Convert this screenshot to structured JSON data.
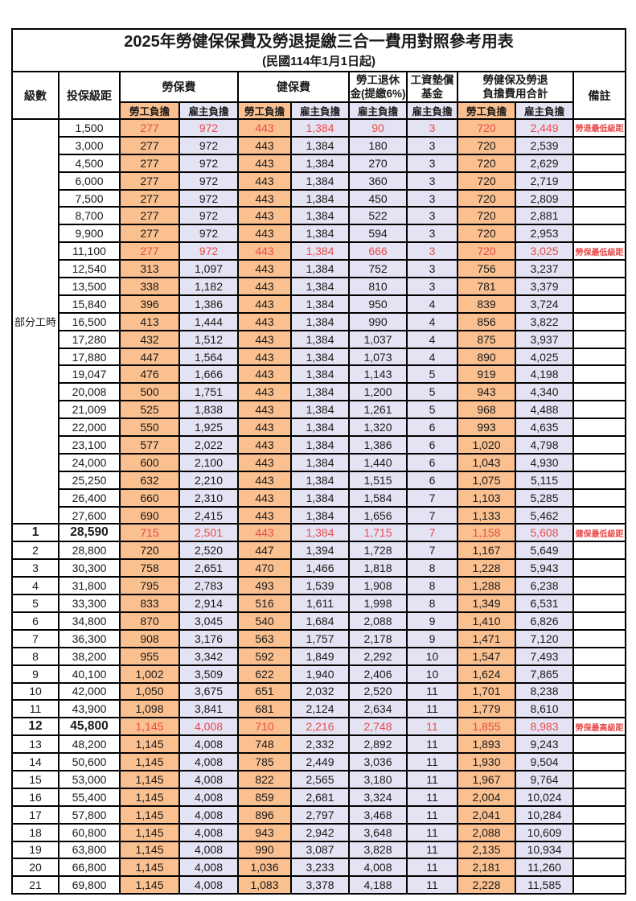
{
  "title": "2025年勞健保保費及勞退提繳三合一費用對照參考用表",
  "subtitle": "(民國114年1月1日起)",
  "colors": {
    "employee_fill": "#FAC090",
    "employer_fill": "#E4E3F3",
    "highlight_red": "#E94B4B",
    "border": "#000000"
  },
  "columns": {
    "level": "級數",
    "bracket": "投保級距",
    "labor_insurance": "勞保費",
    "health_insurance": "健保費",
    "pension_line1": "勞工退休",
    "pension_line2": "金(提繳6%)",
    "wage_fund_line1": "工資墊償",
    "wage_fund_line2": "基金",
    "total_line1": "勞健保及勞退",
    "total_line2": "負擔費用合計",
    "remark": "備註",
    "employee": "勞工負擔",
    "employer": "雇主負擔"
  },
  "part_time_label": "部分工時",
  "rows": [
    {
      "level": null,
      "bracket": "1,500",
      "values": [
        "277",
        "972",
        "443",
        "1,384",
        "90",
        "3",
        "720",
        "2,449"
      ],
      "note": "勞退最低級距",
      "red": true,
      "bold": false
    },
    {
      "level": null,
      "bracket": "3,000",
      "values": [
        "277",
        "972",
        "443",
        "1,384",
        "180",
        "3",
        "720",
        "2,539"
      ],
      "note": "",
      "red": false,
      "bold": false
    },
    {
      "level": null,
      "bracket": "4,500",
      "values": [
        "277",
        "972",
        "443",
        "1,384",
        "270",
        "3",
        "720",
        "2,629"
      ],
      "note": "",
      "red": false,
      "bold": false
    },
    {
      "level": null,
      "bracket": "6,000",
      "values": [
        "277",
        "972",
        "443",
        "1,384",
        "360",
        "3",
        "720",
        "2,719"
      ],
      "note": "",
      "red": false,
      "bold": false
    },
    {
      "level": null,
      "bracket": "7,500",
      "values": [
        "277",
        "972",
        "443",
        "1,384",
        "450",
        "3",
        "720",
        "2,809"
      ],
      "note": "",
      "red": false,
      "bold": false
    },
    {
      "level": null,
      "bracket": "8,700",
      "values": [
        "277",
        "972",
        "443",
        "1,384",
        "522",
        "3",
        "720",
        "2,881"
      ],
      "note": "",
      "red": false,
      "bold": false
    },
    {
      "level": null,
      "bracket": "9,900",
      "values": [
        "277",
        "972",
        "443",
        "1,384",
        "594",
        "3",
        "720",
        "2,953"
      ],
      "note": "",
      "red": false,
      "bold": false
    },
    {
      "level": null,
      "bracket": "11,100",
      "values": [
        "277",
        "972",
        "443",
        "1,384",
        "666",
        "3",
        "720",
        "3,025"
      ],
      "note": "勞保最低級距",
      "red": true,
      "bold": false
    },
    {
      "level": null,
      "bracket": "12,540",
      "values": [
        "313",
        "1,097",
        "443",
        "1,384",
        "752",
        "3",
        "756",
        "3,237"
      ],
      "note": "",
      "red": false,
      "bold": false
    },
    {
      "level": null,
      "bracket": "13,500",
      "values": [
        "338",
        "1,182",
        "443",
        "1,384",
        "810",
        "3",
        "781",
        "3,379"
      ],
      "note": "",
      "red": false,
      "bold": false
    },
    {
      "level": null,
      "bracket": "15,840",
      "values": [
        "396",
        "1,386",
        "443",
        "1,384",
        "950",
        "4",
        "839",
        "3,724"
      ],
      "note": "",
      "red": false,
      "bold": false
    },
    {
      "level": null,
      "bracket": "16,500",
      "values": [
        "413",
        "1,444",
        "443",
        "1,384",
        "990",
        "4",
        "856",
        "3,822"
      ],
      "note": "",
      "red": false,
      "bold": false
    },
    {
      "level": null,
      "bracket": "17,280",
      "values": [
        "432",
        "1,512",
        "443",
        "1,384",
        "1,037",
        "4",
        "875",
        "3,937"
      ],
      "note": "",
      "red": false,
      "bold": false
    },
    {
      "level": null,
      "bracket": "17,880",
      "values": [
        "447",
        "1,564",
        "443",
        "1,384",
        "1,073",
        "4",
        "890",
        "4,025"
      ],
      "note": "",
      "red": false,
      "bold": false
    },
    {
      "level": null,
      "bracket": "19,047",
      "values": [
        "476",
        "1,666",
        "443",
        "1,384",
        "1,143",
        "5",
        "919",
        "4,198"
      ],
      "note": "",
      "red": false,
      "bold": false
    },
    {
      "level": null,
      "bracket": "20,008",
      "values": [
        "500",
        "1,751",
        "443",
        "1,384",
        "1,200",
        "5",
        "943",
        "4,340"
      ],
      "note": "",
      "red": false,
      "bold": false
    },
    {
      "level": null,
      "bracket": "21,009",
      "values": [
        "525",
        "1,838",
        "443",
        "1,384",
        "1,261",
        "5",
        "968",
        "4,488"
      ],
      "note": "",
      "red": false,
      "bold": false
    },
    {
      "level": null,
      "bracket": "22,000",
      "values": [
        "550",
        "1,925",
        "443",
        "1,384",
        "1,320",
        "6",
        "993",
        "4,635"
      ],
      "note": "",
      "red": false,
      "bold": false
    },
    {
      "level": null,
      "bracket": "23,100",
      "values": [
        "577",
        "2,022",
        "443",
        "1,384",
        "1,386",
        "6",
        "1,020",
        "4,798"
      ],
      "note": "",
      "red": false,
      "bold": false
    },
    {
      "level": null,
      "bracket": "24,000",
      "values": [
        "600",
        "2,100",
        "443",
        "1,384",
        "1,440",
        "6",
        "1,043",
        "4,930"
      ],
      "note": "",
      "red": false,
      "bold": false
    },
    {
      "level": null,
      "bracket": "25,250",
      "values": [
        "632",
        "2,210",
        "443",
        "1,384",
        "1,515",
        "6",
        "1,075",
        "5,115"
      ],
      "note": "",
      "red": false,
      "bold": false
    },
    {
      "level": null,
      "bracket": "26,400",
      "values": [
        "660",
        "2,310",
        "443",
        "1,384",
        "1,584",
        "7",
        "1,103",
        "5,285"
      ],
      "note": "",
      "red": false,
      "bold": false
    },
    {
      "level": null,
      "bracket": "27,600",
      "values": [
        "690",
        "2,415",
        "443",
        "1,384",
        "1,656",
        "7",
        "1,133",
        "5,462"
      ],
      "note": "",
      "red": false,
      "bold": false
    },
    {
      "level": "1",
      "bracket": "28,590",
      "values": [
        "715",
        "2,501",
        "443",
        "1,384",
        "1,715",
        "7",
        "1,158",
        "5,608"
      ],
      "note": "健保最低級距",
      "red": true,
      "bold": true
    },
    {
      "level": "2",
      "bracket": "28,800",
      "values": [
        "720",
        "2,520",
        "447",
        "1,394",
        "1,728",
        "7",
        "1,167",
        "5,649"
      ],
      "note": "",
      "red": false,
      "bold": false
    },
    {
      "level": "3",
      "bracket": "30,300",
      "values": [
        "758",
        "2,651",
        "470",
        "1,466",
        "1,818",
        "8",
        "1,228",
        "5,943"
      ],
      "note": "",
      "red": false,
      "bold": false
    },
    {
      "level": "4",
      "bracket": "31,800",
      "values": [
        "795",
        "2,783",
        "493",
        "1,539",
        "1,908",
        "8",
        "1,288",
        "6,238"
      ],
      "note": "",
      "red": false,
      "bold": false
    },
    {
      "level": "5",
      "bracket": "33,300",
      "values": [
        "833",
        "2,914",
        "516",
        "1,611",
        "1,998",
        "8",
        "1,349",
        "6,531"
      ],
      "note": "",
      "red": false,
      "bold": false
    },
    {
      "level": "6",
      "bracket": "34,800",
      "values": [
        "870",
        "3,045",
        "540",
        "1,684",
        "2,088",
        "9",
        "1,410",
        "6,826"
      ],
      "note": "",
      "red": false,
      "bold": false
    },
    {
      "level": "7",
      "bracket": "36,300",
      "values": [
        "908",
        "3,176",
        "563",
        "1,757",
        "2,178",
        "9",
        "1,471",
        "7,120"
      ],
      "note": "",
      "red": false,
      "bold": false
    },
    {
      "level": "8",
      "bracket": "38,200",
      "values": [
        "955",
        "3,342",
        "592",
        "1,849",
        "2,292",
        "10",
        "1,547",
        "7,493"
      ],
      "note": "",
      "red": false,
      "bold": false
    },
    {
      "level": "9",
      "bracket": "40,100",
      "values": [
        "1,002",
        "3,509",
        "622",
        "1,940",
        "2,406",
        "10",
        "1,624",
        "7,865"
      ],
      "note": "",
      "red": false,
      "bold": false
    },
    {
      "level": "10",
      "bracket": "42,000",
      "values": [
        "1,050",
        "3,675",
        "651",
        "2,032",
        "2,520",
        "11",
        "1,701",
        "8,238"
      ],
      "note": "",
      "red": false,
      "bold": false
    },
    {
      "level": "11",
      "bracket": "43,900",
      "values": [
        "1,098",
        "3,841",
        "681",
        "2,124",
        "2,634",
        "11",
        "1,779",
        "8,610"
      ],
      "note": "",
      "red": false,
      "bold": false
    },
    {
      "level": "12",
      "bracket": "45,800",
      "values": [
        "1,145",
        "4,008",
        "710",
        "2,216",
        "2,748",
        "11",
        "1,855",
        "8,983"
      ],
      "note": "勞保最高級距",
      "red": true,
      "bold": true
    },
    {
      "level": "13",
      "bracket": "48,200",
      "values": [
        "1,145",
        "4,008",
        "748",
        "2,332",
        "2,892",
        "11",
        "1,893",
        "9,243"
      ],
      "note": "",
      "red": false,
      "bold": false
    },
    {
      "level": "14",
      "bracket": "50,600",
      "values": [
        "1,145",
        "4,008",
        "785",
        "2,449",
        "3,036",
        "11",
        "1,930",
        "9,504"
      ],
      "note": "",
      "red": false,
      "bold": false
    },
    {
      "level": "15",
      "bracket": "53,000",
      "values": [
        "1,145",
        "4,008",
        "822",
        "2,565",
        "3,180",
        "11",
        "1,967",
        "9,764"
      ],
      "note": "",
      "red": false,
      "bold": false
    },
    {
      "level": "16",
      "bracket": "55,400",
      "values": [
        "1,145",
        "4,008",
        "859",
        "2,681",
        "3,324",
        "11",
        "2,004",
        "10,024"
      ],
      "note": "",
      "red": false,
      "bold": false
    },
    {
      "level": "17",
      "bracket": "57,800",
      "values": [
        "1,145",
        "4,008",
        "896",
        "2,797",
        "3,468",
        "11",
        "2,041",
        "10,284"
      ],
      "note": "",
      "red": false,
      "bold": false
    },
    {
      "level": "18",
      "bracket": "60,800",
      "values": [
        "1,145",
        "4,008",
        "943",
        "2,942",
        "3,648",
        "11",
        "2,088",
        "10,609"
      ],
      "note": "",
      "red": false,
      "bold": false
    },
    {
      "level": "19",
      "bracket": "63,800",
      "values": [
        "1,145",
        "4,008",
        "990",
        "3,087",
        "3,828",
        "11",
        "2,135",
        "10,934"
      ],
      "note": "",
      "red": false,
      "bold": false
    },
    {
      "level": "20",
      "bracket": "66,800",
      "values": [
        "1,145",
        "4,008",
        "1,036",
        "3,233",
        "4,008",
        "11",
        "2,181",
        "11,260"
      ],
      "note": "",
      "red": false,
      "bold": false
    },
    {
      "level": "21",
      "bracket": "69,800",
      "values": [
        "1,145",
        "4,008",
        "1,083",
        "3,378",
        "4,188",
        "11",
        "2,228",
        "11,585"
      ],
      "note": "",
      "red": false,
      "bold": false
    }
  ],
  "value_column_types": [
    "emp",
    "er",
    "emp",
    "er",
    "er",
    "er",
    "emp",
    "er"
  ]
}
